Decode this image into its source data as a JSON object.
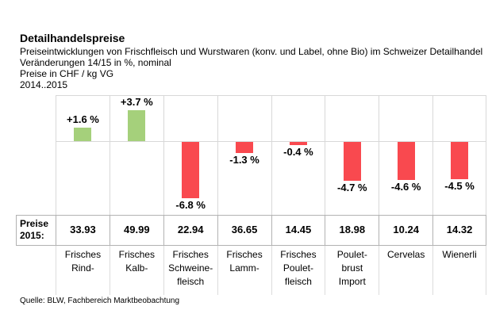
{
  "header": {
    "title": "Detailhandelspreise",
    "line1": "Preiseintwicklungen von Frischfleisch und Wurstwaren (konv. und Label, ohne Bio) im Schweizer Detailhandel",
    "line2": "Veränderungen 14/15 in %, nominal",
    "line3": "Preise in CHF / kg VG",
    "line4": "2014..2015"
  },
  "price_row": {
    "label_line1": "Preise",
    "label_line2": "2015:"
  },
  "footer": {
    "source": "Quelle: BLW, Fachbereich Marktbeobachtung"
  },
  "chart_data": {
    "type": "bar",
    "title": "Detailhandelspreise",
    "subtitle": "Preiseintwicklungen von Frischfleisch und Wurstwaren (konv. und Label, ohne Bio) im Schweizer Detailhandel",
    "unit_note": "Veränderungen 14/15 in %, nominal",
    "price_unit": "Preise in CHF / kg VG",
    "period": "2014..2015",
    "categories": [
      "Frisches Rind-",
      "Frisches Kalb-",
      "Frisches Schweine-fleisch",
      "Frisches Lamm-",
      "Frisches Poulet-fleisch",
      "Poulet-brust Import",
      "Cervelas",
      "Wienerli"
    ],
    "category_lines": [
      [
        "Frisches",
        "Rind-"
      ],
      [
        "Frisches",
        "Kalb-"
      ],
      [
        "Frisches",
        "Schweine-",
        "fleisch"
      ],
      [
        "Frisches",
        "Lamm-"
      ],
      [
        "Frisches",
        "Poulet-",
        "fleisch"
      ],
      [
        "Poulet-",
        "brust",
        "Import"
      ],
      [
        "Cervelas"
      ],
      [
        "Wienerli"
      ]
    ],
    "values": [
      1.6,
      3.7,
      -6.8,
      -1.3,
      -0.4,
      -4.7,
      -4.6,
      -4.5
    ],
    "value_labels": [
      "+1.6 %",
      "+3.7 %",
      "-6.8 %",
      "-1.3 %",
      "-0.4 %",
      "-4.7 %",
      "-4.6 %",
      "-4.5 %"
    ],
    "prices_2015": [
      "33.93",
      "49.99",
      "22.94",
      "36.65",
      "14.45",
      "18.98",
      "10.24",
      "14.32"
    ],
    "price_row_label": "Preise 2015:",
    "ylim": [
      -8.8,
      5.4
    ],
    "grid": "vertical column separators and zero line, light gray",
    "legend": "none",
    "bar_colors": {
      "positive": "#a5d07b",
      "negative": "#f9494f"
    }
  }
}
